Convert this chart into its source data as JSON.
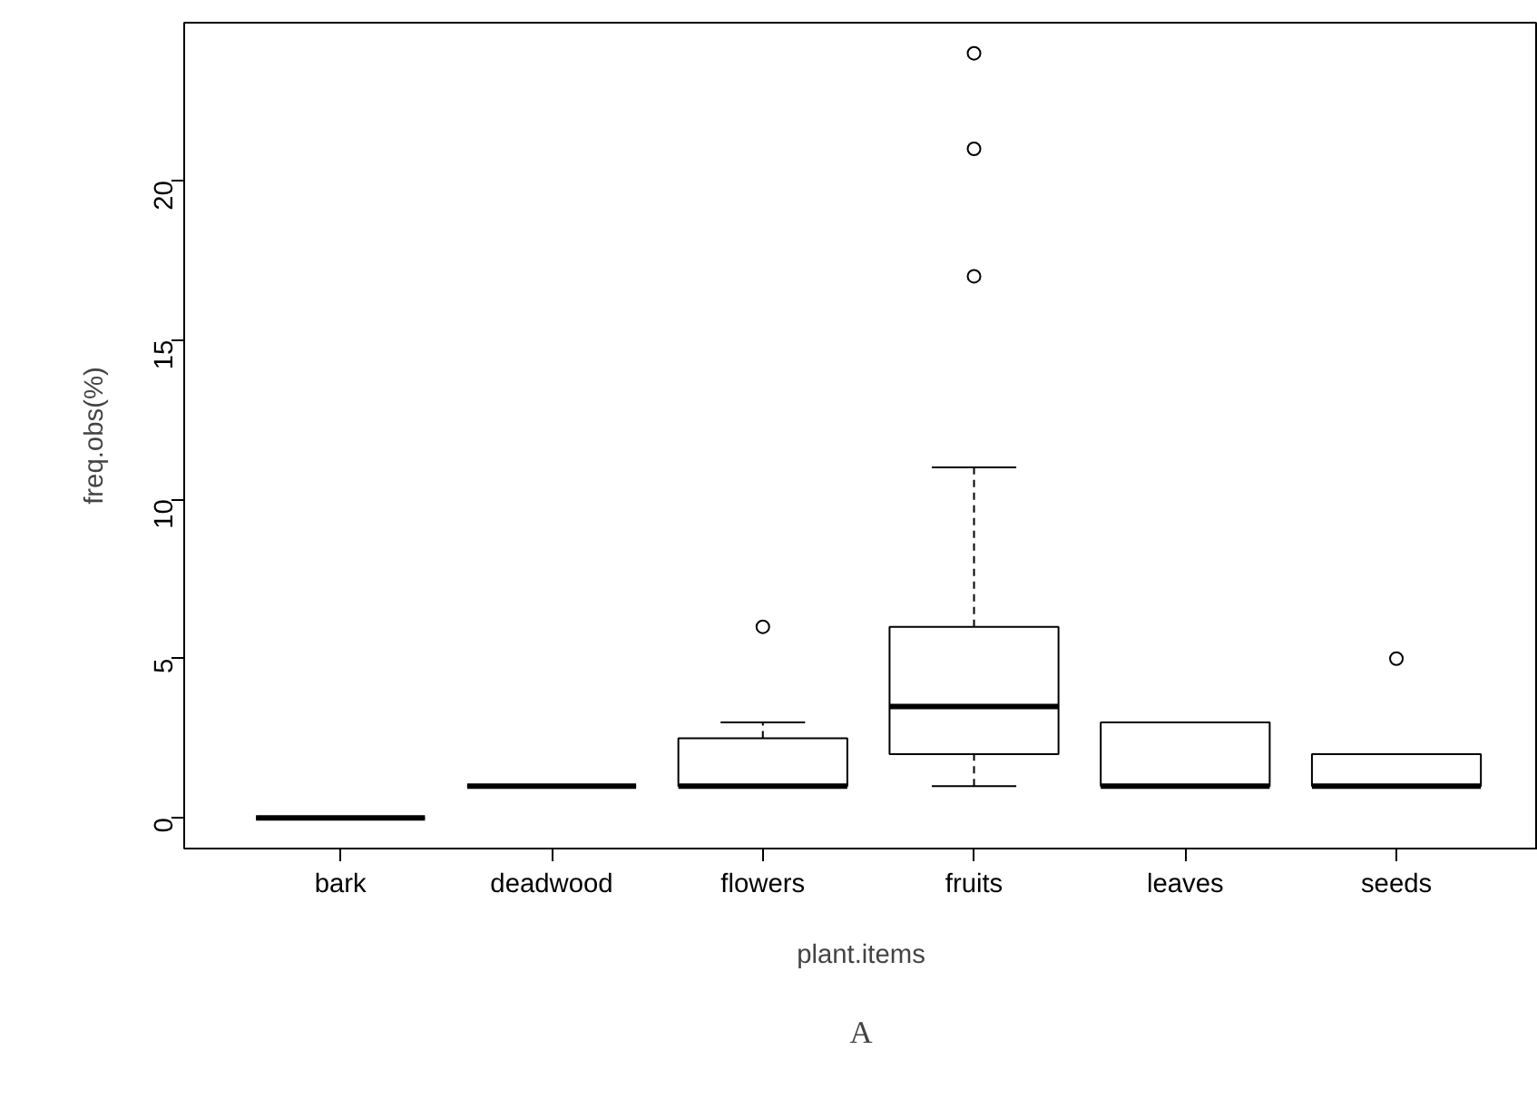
{
  "chart_data": {
    "type": "box",
    "xlabel": "plant.items",
    "ylabel": "freq.obs(%)",
    "categories": [
      "bark",
      "deadwood",
      "flowers",
      "fruits",
      "leaves",
      "seeds"
    ],
    "boxes": [
      {
        "low": 0,
        "q1": 0,
        "median": 0,
        "q3": 0,
        "high": 0
      },
      {
        "low": 1,
        "q1": 1,
        "median": 1,
        "q3": 1,
        "high": 1
      },
      {
        "low": 1,
        "q1": 1,
        "median": 1,
        "q3": 2.5,
        "high": 3,
        "outliers": [
          6
        ]
      },
      {
        "low": 1,
        "q1": 2,
        "median": 3.5,
        "q3": 6,
        "high": 11,
        "outliers": [
          17,
          21,
          24
        ]
      },
      {
        "low": 1,
        "q1": 1,
        "median": 1,
        "q3": 3,
        "high": 3
      },
      {
        "low": 1,
        "q1": 1,
        "median": 1,
        "q3": 2,
        "high": 2,
        "outliers": [
          5
        ]
      }
    ],
    "ylim": [
      -0.96,
      24.96
    ],
    "yticks": [
      0,
      5,
      10,
      15,
      20
    ],
    "annotations": [
      "A"
    ]
  }
}
